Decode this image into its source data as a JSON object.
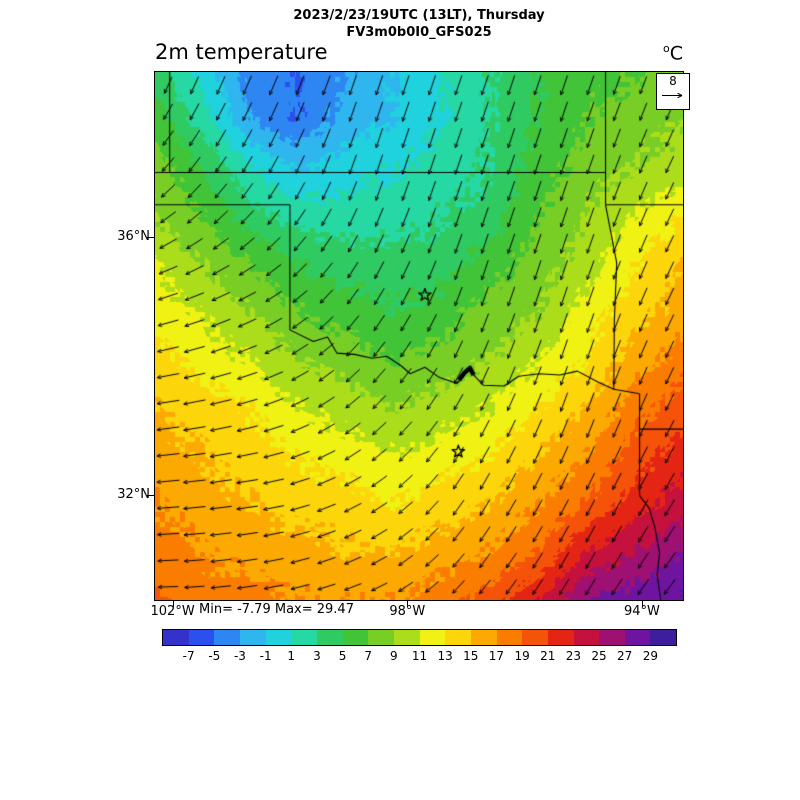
{
  "header": {
    "title_line1": "2023/2/23/19UTC (13LT), Thursday",
    "title_line2": "FV3m0b0I0_GFS025"
  },
  "plot": {
    "field_label": "2m temperature",
    "units_sup": "o",
    "units_base": "C",
    "min_max_label": "Min= -7.79 Max= 29.47",
    "ref_vector_label": "8"
  },
  "axes": {
    "lon_ticks": [
      {
        "label": "102°W",
        "lon": -102
      },
      {
        "label": "98°W",
        "lon": -98
      },
      {
        "label": "94°W",
        "lon": -94
      }
    ],
    "lat_ticks": [
      {
        "label": "36°N",
        "lat": 36
      },
      {
        "label": "32°N",
        "lat": 32
      }
    ]
  },
  "colorbar": {
    "tick_labels": [
      "-7",
      "-5",
      "-3",
      "-1",
      "1",
      "3",
      "5",
      "7",
      "9",
      "11",
      "13",
      "15",
      "17",
      "19",
      "21",
      "23",
      "25",
      "27",
      "29"
    ],
    "colors": [
      "#3333cc",
      "#2b50ee",
      "#2e86f2",
      "#2fb6ef",
      "#1fd2dd",
      "#25d8a4",
      "#2fcb62",
      "#41c437",
      "#79ce25",
      "#abdd1b",
      "#eff212",
      "#fcd60a",
      "#fcaa01",
      "#fb7d00",
      "#f5520a",
      "#e52514",
      "#c4113d",
      "#9e1072",
      "#6e14a1",
      "#3f1e9d"
    ]
  },
  "chart_data": {
    "type": "heatmap",
    "title": "2m temperature",
    "units": "°C",
    "min": -7.79,
    "max": 29.47,
    "wind_reference": 8,
    "extent": {
      "lon_min": -102.3,
      "lon_max": -93.3,
      "lat_min": 30.37,
      "lat_max": 38.56
    },
    "thresholds": [
      -7,
      -5,
      -3,
      -1,
      1,
      3,
      5,
      7,
      9,
      11,
      13,
      15,
      17,
      19,
      21,
      23,
      25,
      27,
      29
    ],
    "palette": [
      "#3333cc",
      "#2b50ee",
      "#2e86f2",
      "#2fb6ef",
      "#1fd2dd",
      "#25d8a4",
      "#2fcb62",
      "#41c437",
      "#79ce25",
      "#abdd1b",
      "#eff212",
      "#fcd60a",
      "#fcaa01",
      "#fb7d00",
      "#f5520a",
      "#e52514",
      "#c4113d",
      "#9e1072",
      "#6e14a1",
      "#3f1e9d"
    ],
    "temperature_grid": [
      [
        4,
        0,
        -4,
        -5,
        -3,
        -1,
        1,
        3,
        5,
        6,
        7,
        8
      ],
      [
        6,
        2,
        -3,
        -5,
        -2,
        -1,
        1,
        3,
        5,
        7,
        8,
        9
      ],
      [
        8,
        5,
        1,
        -1,
        0,
        1,
        2,
        3,
        6,
        8,
        9,
        10
      ],
      [
        9,
        7,
        4,
        2,
        2,
        2,
        3,
        4,
        7,
        9,
        11,
        13
      ],
      [
        11,
        9,
        7,
        5,
        4,
        4,
        4,
        6,
        8,
        10,
        13,
        15
      ],
      [
        12,
        11,
        9,
        7,
        6,
        5,
        6,
        8,
        9,
        12,
        14,
        16
      ],
      [
        14,
        12,
        11,
        9,
        8,
        7,
        8,
        9,
        11,
        13,
        16,
        18
      ],
      [
        15,
        14,
        13,
        11,
        10,
        9,
        10,
        11,
        13,
        15,
        18,
        20
      ],
      [
        16,
        15,
        14,
        13,
        12,
        11,
        12,
        13,
        15,
        17,
        20,
        22
      ],
      [
        17,
        16,
        15,
        14,
        14,
        13,
        14,
        15,
        17,
        19,
        22,
        24
      ],
      [
        18,
        17,
        16,
        16,
        15,
        15,
        16,
        17,
        19,
        23,
        25,
        27
      ],
      [
        19,
        18,
        18,
        17,
        17,
        17,
        18,
        20,
        23,
        27,
        28,
        29
      ]
    ],
    "wind": {
      "ref": 8,
      "u": [
        [
          -2,
          -2.5,
          -2,
          -2,
          -2,
          -2
        ],
        [
          -4,
          -3,
          -2,
          -2,
          -2,
          -2.5
        ],
        [
          -6,
          -5,
          -3,
          -2,
          -2,
          -2.5
        ],
        [
          -7,
          -6,
          -4,
          -2.5,
          -2,
          -2.5
        ],
        [
          -7,
          -6.5,
          -5,
          -3,
          -2.5,
          -3
        ],
        [
          -6,
          -6,
          -5,
          -3.5,
          -3,
          -3.5
        ]
      ],
      "v": [
        [
          -5,
          -6,
          -6,
          -6,
          -6,
          -5
        ],
        [
          -4,
          -5,
          -6,
          -6,
          -6,
          -5
        ],
        [
          -2,
          -3,
          -5,
          -6,
          -6,
          -5
        ],
        [
          -1,
          -2,
          -4,
          -5,
          -6,
          -5
        ],
        [
          -0.5,
          -1,
          -3,
          -5,
          -5,
          -5
        ],
        [
          0,
          -1,
          -2,
          -4,
          -5,
          -4.5
        ]
      ]
    },
    "borders": [
      {
        "name": "colorado-kansas",
        "points": [
          [
            -102.05,
            38.56
          ],
          [
            -102.05,
            37.0
          ]
        ]
      },
      {
        "name": "kansas-oklahoma",
        "points": [
          [
            -102.3,
            37.0
          ],
          [
            -94.62,
            37.0
          ]
        ]
      },
      {
        "name": "kansas-missouri",
        "points": [
          [
            -94.62,
            38.56
          ],
          [
            -94.62,
            36.5
          ]
        ]
      },
      {
        "name": "missouri-arkansas",
        "points": [
          [
            -94.62,
            36.5
          ],
          [
            -93.3,
            36.5
          ]
        ]
      },
      {
        "name": "oklahoma-arkansas",
        "points": [
          [
            -94.62,
            36.5
          ],
          [
            -94.43,
            35.6
          ],
          [
            -94.47,
            34.7
          ],
          [
            -94.48,
            33.64
          ]
        ]
      },
      {
        "name": "oklahoma-panhandle-south",
        "points": [
          [
            -102.3,
            36.5
          ],
          [
            -100.0,
            36.5
          ]
        ]
      },
      {
        "name": "texas-panhandle-east",
        "points": [
          [
            -100.0,
            36.5
          ],
          [
            -100.0,
            34.56
          ]
        ]
      },
      {
        "name": "red-river",
        "points": [
          [
            -100.0,
            34.56
          ],
          [
            -99.6,
            34.38
          ],
          [
            -99.36,
            34.45
          ],
          [
            -99.2,
            34.2
          ],
          [
            -98.9,
            34.18
          ],
          [
            -98.6,
            34.12
          ],
          [
            -98.35,
            34.15
          ],
          [
            -98.1,
            34.0
          ],
          [
            -97.95,
            33.88
          ],
          [
            -97.7,
            33.98
          ],
          [
            -97.45,
            33.82
          ],
          [
            -97.15,
            33.73
          ],
          [
            -96.95,
            33.94
          ],
          [
            -96.7,
            33.7
          ],
          [
            -96.35,
            33.69
          ],
          [
            -96.1,
            33.84
          ],
          [
            -95.75,
            33.88
          ],
          [
            -95.4,
            33.86
          ],
          [
            -95.1,
            33.92
          ],
          [
            -94.75,
            33.75
          ],
          [
            -94.48,
            33.64
          ]
        ]
      },
      {
        "name": "texas-arkansas",
        "points": [
          [
            -94.48,
            33.64
          ],
          [
            -94.04,
            33.57
          ]
        ]
      },
      {
        "name": "texas-louisiana",
        "points": [
          [
            -94.04,
            33.57
          ],
          [
            -94.04,
            31.99
          ],
          [
            -93.88,
            31.8
          ],
          [
            -93.78,
            31.5
          ],
          [
            -93.7,
            31.1
          ],
          [
            -93.74,
            30.75
          ],
          [
            -93.68,
            30.37
          ]
        ]
      },
      {
        "name": "arkansas-louisiana",
        "points": [
          [
            -94.04,
            33.02
          ],
          [
            -93.3,
            33.02
          ]
        ]
      }
    ],
    "lake": [
      [
        -97.12,
        33.78
      ],
      [
        -97.02,
        33.9
      ],
      [
        -96.93,
        33.97
      ],
      [
        -96.87,
        33.86
      ]
    ],
    "markers": [
      {
        "name": "star-marker-north",
        "lon": -97.7,
        "lat": 35.1
      },
      {
        "name": "star-marker-south",
        "lon": -97.13,
        "lat": 32.67
      }
    ]
  }
}
